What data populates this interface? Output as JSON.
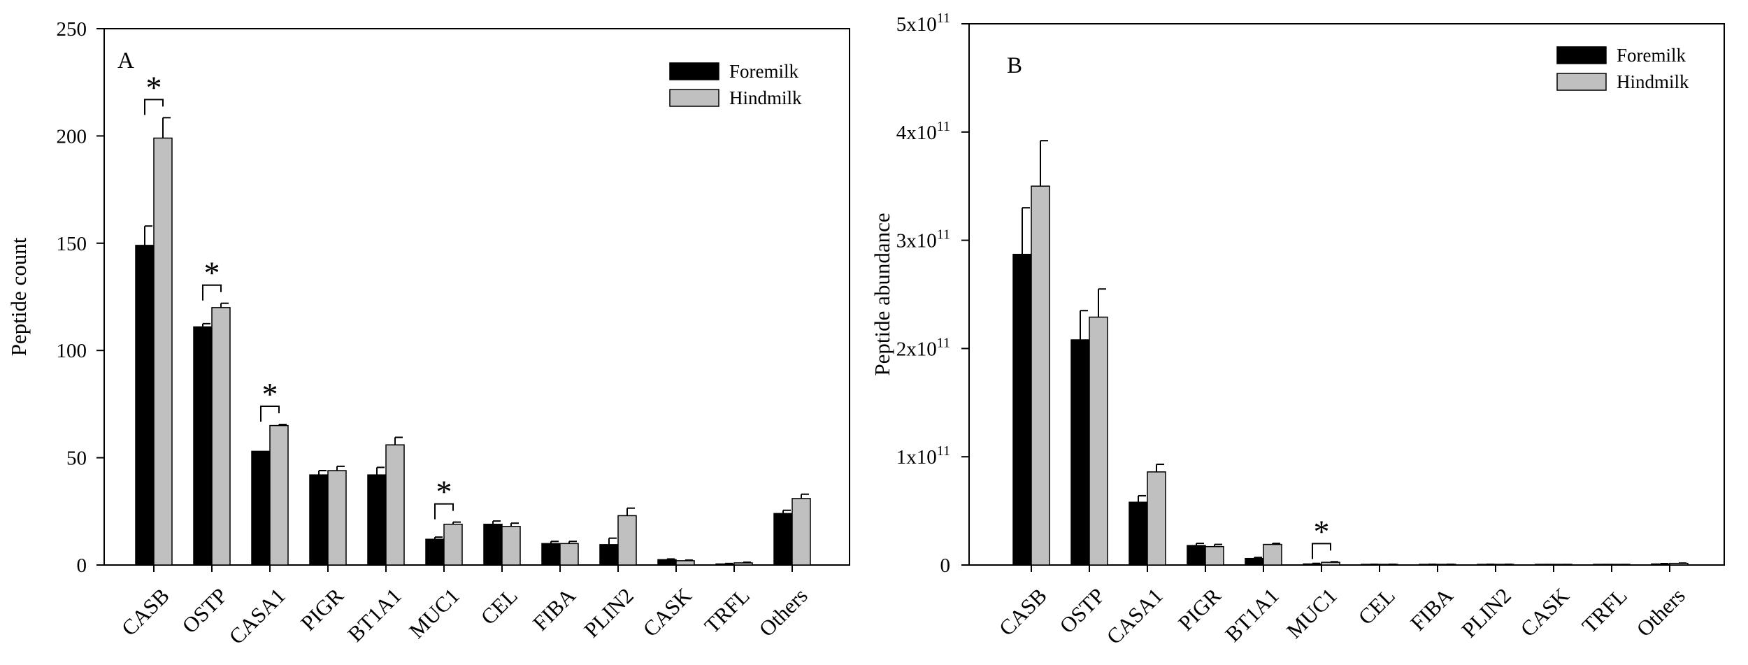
{
  "colors": {
    "foremilk": "#000000",
    "hindmilk": "#c0c0c0",
    "axis": "#000000"
  },
  "chart_data": [
    {
      "type": "bar",
      "panel_label": "A",
      "title": "",
      "xlabel": "",
      "ylabel": "Peptide count",
      "ylim": [
        0,
        250
      ],
      "yticks": [
        "0",
        "50",
        "100",
        "150",
        "200",
        "250"
      ],
      "categories": [
        "CASB",
        "OSTP",
        "CASA1",
        "PIGR",
        "BT1A1",
        "MUC1",
        "CEL",
        "FIBA",
        "PLIN2",
        "CASK",
        "TRFL",
        "Others"
      ],
      "series": [
        {
          "name": "Foremilk",
          "values": [
            149,
            111,
            53,
            42,
            42,
            12,
            19,
            10,
            9.5,
            2.5,
            0.5,
            24
          ],
          "errors": [
            9,
            1.5,
            0,
            2,
            3.5,
            1,
            1.5,
            1,
            3,
            0.3,
            0.2,
            1.5
          ]
        },
        {
          "name": "Hindmilk",
          "values": [
            199,
            120,
            65,
            44,
            56,
            19,
            18,
            10,
            23,
            2,
            1,
            31
          ],
          "errors": [
            9.5,
            2,
            0.5,
            2,
            3.5,
            1,
            1.5,
            1,
            3.5,
            0.3,
            0.3,
            2
          ]
        }
      ],
      "significance": [
        {
          "category": "CASB",
          "label": "*"
        },
        {
          "category": "OSTP",
          "label": "*"
        },
        {
          "category": "CASA1",
          "label": "*"
        },
        {
          "category": "MUC1",
          "label": "*"
        }
      ],
      "legend": {
        "position": "top-right",
        "entries": [
          "Foremilk",
          "Hindmilk"
        ]
      }
    },
    {
      "type": "bar",
      "panel_label": "B",
      "title": "",
      "xlabel": "",
      "ylabel": "Peptide abundance",
      "ylim": [
        0,
        500000000000.0
      ],
      "yticks": [
        {
          "base": "0",
          "exp": ""
        },
        {
          "base": "1x10",
          "exp": "11"
        },
        {
          "base": "2x10",
          "exp": "11"
        },
        {
          "base": "3x10",
          "exp": "11"
        },
        {
          "base": "4x10",
          "exp": "11"
        },
        {
          "base": "5x10",
          "exp": "11"
        }
      ],
      "categories": [
        "CASB",
        "OSTP",
        "CASA1",
        "PIGR",
        "BT1A1",
        "MUC1",
        "CEL",
        "FIBA",
        "PLIN2",
        "CASK",
        "TRFL",
        "Others"
      ],
      "series": [
        {
          "name": "Foremilk",
          "values": [
            287000000000.0,
            208000000000.0,
            58000000000.0,
            18000000000.0,
            6000000000.0,
            1000000000.0,
            500000000.0,
            500000000.0,
            500000000.0,
            300000000.0,
            300000000.0,
            1000000000.0
          ],
          "errors": [
            43000000000.0,
            27000000000.0,
            6000000000.0,
            2000000000.0,
            1000000000.0,
            500000000.0,
            200000000.0,
            200000000.0,
            200000000.0,
            100000000.0,
            100000000.0,
            300000000.0
          ]
        },
        {
          "name": "Hindmilk",
          "values": [
            350000000000.0,
            229000000000.0,
            86000000000.0,
            17000000000.0,
            19000000000.0,
            2500000000.0,
            500000000.0,
            500000000.0,
            500000000.0,
            300000000.0,
            300000000.0,
            1500000000.0
          ],
          "errors": [
            42000000000.0,
            26000000000.0,
            7000000000.0,
            2000000000.0,
            1000000000.0,
            500000000.0,
            200000000.0,
            200000000.0,
            200000000.0,
            100000000.0,
            100000000.0,
            300000000.0
          ]
        }
      ],
      "significance": [
        {
          "category": "MUC1",
          "label": "*"
        }
      ],
      "legend": {
        "position": "top-right",
        "entries": [
          "Foremilk",
          "Hindmilk"
        ]
      }
    }
  ]
}
